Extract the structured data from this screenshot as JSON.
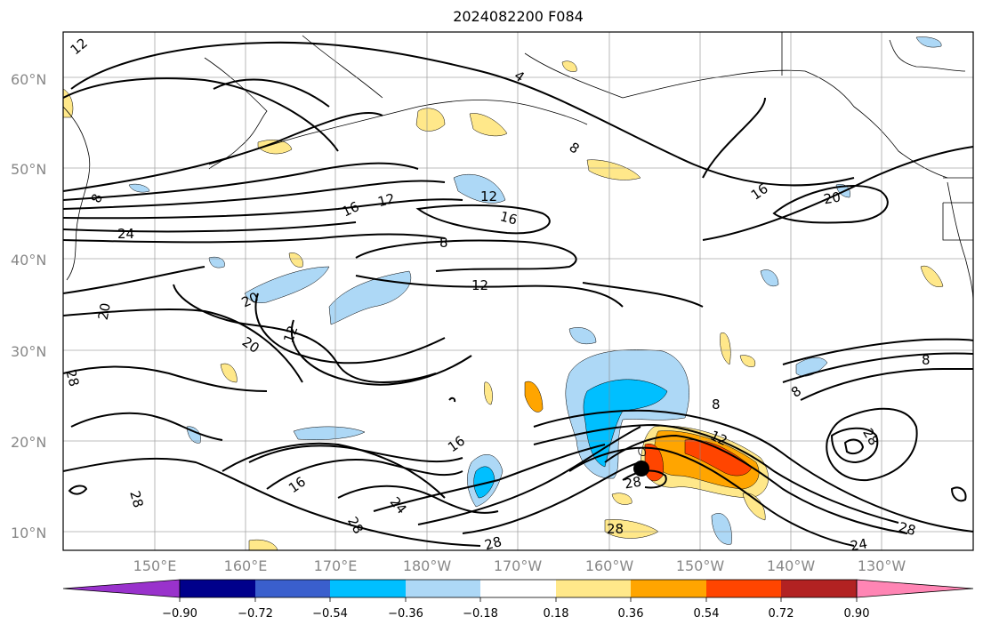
{
  "title": "2024082200 F084",
  "map": {
    "lat_labels": [
      "60°N",
      "50°N",
      "40°N",
      "30°N",
      "20°N",
      "10°N"
    ],
    "lon_labels": [
      "150°E",
      "160°E",
      "170°E",
      "180°W",
      "170°W",
      "160°W",
      "150°W",
      "140°W",
      "130°W"
    ],
    "contour_labels": [
      "12",
      "4",
      "8",
      "16",
      "12",
      "12",
      "16",
      "8",
      "12",
      "20",
      "16",
      "20",
      "20",
      "12",
      "20",
      "28",
      "16",
      "16",
      "24",
      "28",
      "28",
      "28",
      "8",
      "12",
      "8",
      "8",
      "28",
      "28",
      "28",
      "24",
      "28",
      "8",
      "24"
    ],
    "storm_marker": "black-dot"
  },
  "colorbar": {
    "colors": [
      "#9932cc",
      "#00008b",
      "#3a5fcd",
      "#00bfff",
      "#add8f6",
      "#ffffff",
      "#ffe88a",
      "#ffa500",
      "#ff4500",
      "#b22222",
      "#ff85b4"
    ],
    "tick_labels": [
      "−0.90",
      "−0.72",
      "−0.54",
      "−0.36",
      "−0.18",
      "0.18",
      "0.36",
      "0.54",
      "0.72",
      "0.90"
    ]
  }
}
